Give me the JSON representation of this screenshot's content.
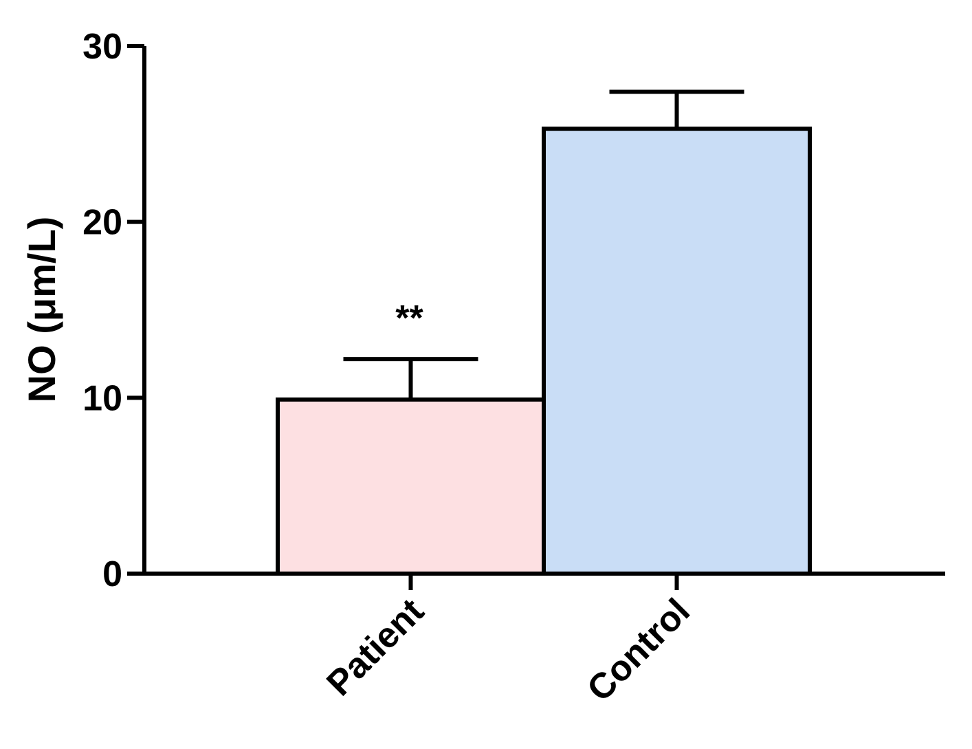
{
  "chart_data": {
    "type": "bar",
    "categories": [
      "Patient",
      "Control"
    ],
    "values": [
      9.9,
      25.3
    ],
    "errors": [
      2.3,
      2.1
    ],
    "colors": [
      "#fde0e2",
      "#c9ddf6"
    ],
    "annotations": [
      {
        "category": "Patient",
        "text": "**"
      }
    ],
    "ylabel": "NO (μm/L)",
    "xlabel": "",
    "title": "",
    "ylim": [
      0,
      30
    ],
    "yticks": [
      0,
      10,
      20,
      30
    ],
    "grid": false,
    "legend": "none"
  }
}
